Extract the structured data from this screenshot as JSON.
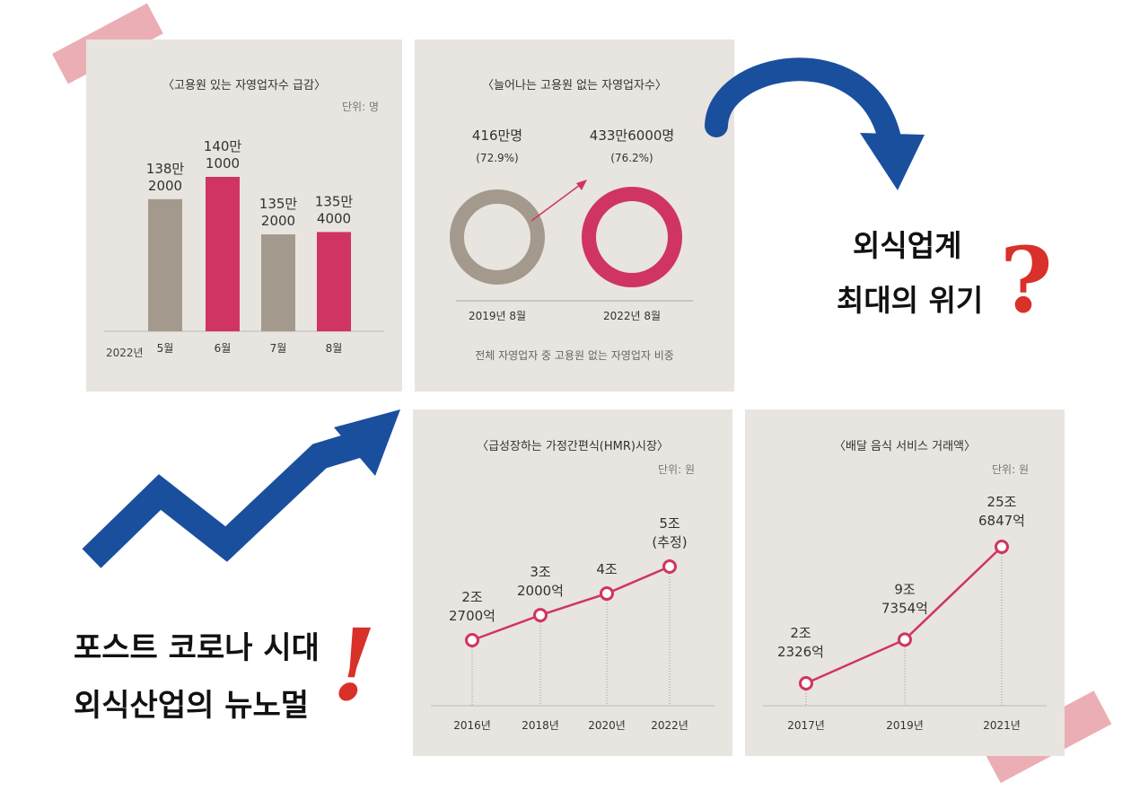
{
  "chart_data": [
    {
      "type": "bar",
      "title": "〈고용원 있는 자영업자수 급감〉",
      "unit": "단위: 명",
      "year_label": "2022년",
      "categories": [
        "5월",
        "6월",
        "7월",
        "8월"
      ],
      "values": [
        1382000,
        1401000,
        1352000,
        1354000
      ],
      "value_labels": [
        [
          "138만",
          "2000"
        ],
        [
          "140만",
          "1000"
        ],
        [
          "135만",
          "2000"
        ],
        [
          "135만",
          "4000"
        ]
      ],
      "colors": [
        "#a39a8d",
        "#d03463",
        "#a39a8d",
        "#d03463"
      ]
    },
    {
      "type": "donut",
      "title": "〈늘어나는 고용원 없는 자영업자수〉",
      "categories": [
        "2019년 8월",
        "2022년 8월"
      ],
      "values": [
        4160000,
        4336000
      ],
      "percent": [
        72.9,
        76.2
      ],
      "value_labels": [
        [
          "416만명",
          "(72.9%)"
        ],
        [
          "433만6000명",
          "(76.2%)"
        ]
      ],
      "colors": [
        "#a39a8d",
        "#d03463"
      ],
      "footnote": "전체 자영업자 중 고용원 없는 자영업자 비중"
    },
    {
      "type": "line",
      "title": "〈급성장하는 가정간편식(HMR)시장〉",
      "unit": "단위: 원",
      "categories": [
        "2016년",
        "2018년",
        "2020년",
        "2022년"
      ],
      "values": [
        22700,
        32000,
        40000,
        50000
      ],
      "value_labels": [
        [
          "2조",
          "2700억"
        ],
        [
          "3조",
          "2000억"
        ],
        [
          "4조"
        ],
        [
          "5조",
          "(추정)"
        ]
      ],
      "color": "#d03463"
    },
    {
      "type": "line",
      "title": "〈배달 음식 서비스 거래액〉",
      "unit": "단위: 원",
      "categories": [
        "2017년",
        "2019년",
        "2021년"
      ],
      "values": [
        22326,
        97354,
        256847
      ],
      "value_labels": [
        [
          "2조",
          "2326억"
        ],
        [
          "9조",
          "7354억"
        ],
        [
          "25조",
          "6847억"
        ]
      ],
      "color": "#d03463"
    }
  ],
  "headline_top": [
    "외식업계",
    "최대의 위기"
  ],
  "headline_bottom": [
    "포스트 코로나 시대",
    "외식산업의 뉴노멀"
  ],
  "marks": {
    "question": "?",
    "exclaim": "!"
  },
  "colors": {
    "panel": "#e8e4df",
    "accent": "#d03463",
    "neutral": "#a39a8d",
    "arrow": "#1a4f9e",
    "mark_red": "#d9302a",
    "tape": "#e8a0a8"
  }
}
